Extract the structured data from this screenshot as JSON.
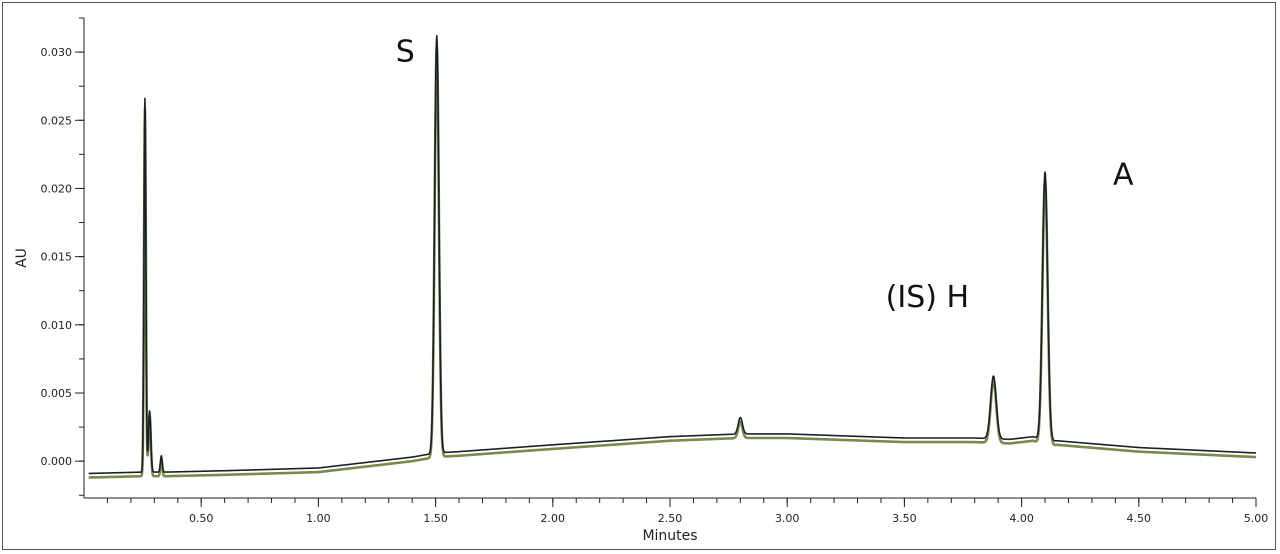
{
  "chart_data": {
    "type": "line",
    "xlabel": "Minutes",
    "ylabel": "AU",
    "xlim": [
      0.0,
      5.0
    ],
    "ylim": [
      -0.0027,
      0.0325
    ],
    "x_ticks": [
      0.5,
      1.0,
      1.5,
      2.0,
      2.5,
      3.0,
      3.5,
      4.0,
      4.5,
      5.0
    ],
    "x_tick_labels": [
      "0.50",
      "1.00",
      "1.50",
      "2.00",
      "2.50",
      "3.00",
      "3.50",
      "4.00",
      "4.50",
      "5.00"
    ],
    "y_ticks": [
      0.0,
      0.005,
      0.01,
      0.015,
      0.02,
      0.025,
      0.03
    ],
    "y_tick_labels": [
      "0.000",
      "0.005",
      "0.010",
      "0.015",
      "0.020",
      "0.025",
      "0.030"
    ],
    "grid": false,
    "annotations": [
      {
        "text": "S",
        "x": 1.33,
        "y": 0.0293
      },
      {
        "text": "(IS) H",
        "x": 3.42,
        "y": 0.0113
      },
      {
        "text": "A",
        "x": 4.39,
        "y": 0.0203
      }
    ],
    "peaks": [
      {
        "x": 0.26,
        "height": 0.0274
      },
      {
        "x": 0.28,
        "height": 0.0045
      },
      {
        "x": 0.33,
        "height": 0.0012
      },
      {
        "x": 1.505,
        "height": 0.0306
      },
      {
        "x": 2.8,
        "height": 0.0012
      },
      {
        "x": 3.88,
        "height": 0.0046
      },
      {
        "x": 4.1,
        "height": 0.0198
      }
    ],
    "series": [
      {
        "color": "#1a1f2a",
        "x": [
          0.02,
          0.25,
          0.35,
          0.6,
          1.0,
          1.4,
          1.5,
          1.6,
          2.0,
          2.5,
          2.8,
          3.0,
          3.5,
          3.8,
          3.95,
          4.05,
          4.1,
          4.15,
          4.5,
          5.0
        ],
        "y": [
          -0.0009,
          -0.0008,
          -0.0008,
          -0.0007,
          -0.0005,
          0.0003,
          0.0006,
          0.0007,
          0.0012,
          0.0018,
          0.002,
          0.002,
          0.0017,
          0.0017,
          0.0016,
          0.0018,
          0.0014,
          0.0015,
          0.001,
          0.0006
        ]
      },
      {
        "color": "#7a8a4a",
        "x": [
          0.02,
          0.25,
          0.35,
          0.6,
          1.0,
          1.4,
          1.5,
          1.6,
          2.0,
          2.5,
          2.8,
          3.0,
          3.5,
          3.8,
          3.95,
          4.05,
          4.1,
          4.15,
          4.5,
          5.0
        ],
        "y": [
          -0.0012,
          -0.0011,
          -0.0011,
          -0.001,
          -0.0008,
          0.0,
          0.0003,
          0.0004,
          0.0009,
          0.0015,
          0.0017,
          0.0017,
          0.0014,
          0.0014,
          0.0013,
          0.0015,
          0.0011,
          0.0012,
          0.0007,
          0.0003
        ]
      }
    ]
  }
}
